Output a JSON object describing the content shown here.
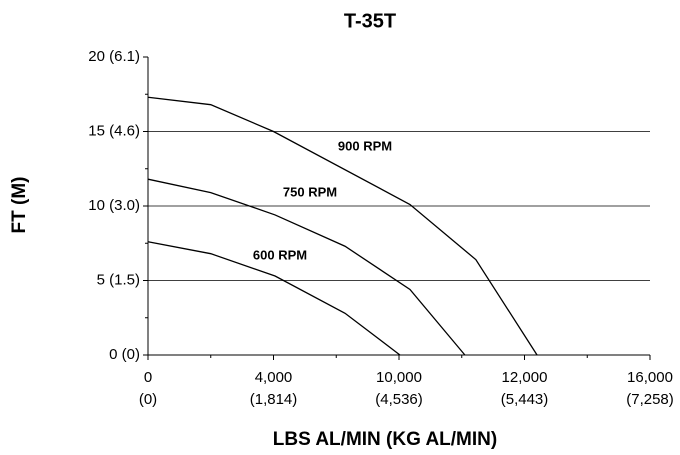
{
  "chart_data": {
    "type": "line",
    "title": "T-35T",
    "x_label": "LBS AL/MIN (KG AL/MIN)",
    "y_label": "FT (M)",
    "xlim": [
      0,
      16000
    ],
    "ylim": [
      0,
      20
    ],
    "xtick_labels": [
      [
        "0",
        "(0)"
      ],
      [
        "4,000",
        "(1,814)"
      ],
      [
        "10,000",
        "(4,536)"
      ],
      [
        "12,000",
        "(5,443)"
      ],
      [
        "16,000",
        "(7,258)"
      ]
    ],
    "yticks": [
      {
        "value": 0,
        "label": "0 (0)"
      },
      {
        "value": 5,
        "label": "5 (1.5)"
      },
      {
        "value": 10,
        "label": "10 (3.0)"
      },
      {
        "value": 15,
        "label": "15 (4.6)"
      },
      {
        "value": 20,
        "label": "20 (6.1)"
      }
    ],
    "grid": true,
    "series": [
      {
        "name": "900 RPM",
        "color": "#000000",
        "x": [
          0,
          2000,
          4000,
          8350,
          10450,
          12400
        ],
        "values": [
          17.3,
          16.8,
          15.0,
          10.1,
          6.4,
          0
        ]
      },
      {
        "name": "750 RPM",
        "color": "#000000",
        "x": [
          0,
          2000,
          4050,
          6280,
          8350,
          10100
        ],
        "values": [
          11.8,
          10.9,
          9.4,
          7.3,
          4.4,
          0
        ]
      },
      {
        "name": "600 RPM",
        "color": "#000000",
        "x": [
          0,
          2000,
          4050,
          6280,
          8030
        ],
        "values": [
          7.6,
          6.8,
          5.3,
          2.8,
          0
        ]
      }
    ]
  }
}
